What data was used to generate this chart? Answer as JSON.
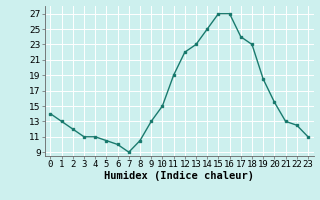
{
  "xlabel": "Humidex (Indice chaleur)",
  "ylabel": "",
  "x": [
    0,
    1,
    2,
    3,
    4,
    5,
    6,
    7,
    8,
    9,
    10,
    11,
    12,
    13,
    14,
    15,
    16,
    17,
    18,
    19,
    20,
    21,
    22,
    23
  ],
  "y": [
    14,
    13,
    12,
    11,
    11,
    10.5,
    10,
    9,
    10.5,
    13,
    15,
    19,
    22,
    23,
    25,
    27,
    27,
    24,
    23,
    18.5,
    15.5,
    13,
    12.5,
    11
  ],
  "line_color": "#1a7a6e",
  "marker": "s",
  "marker_size": 2,
  "background_color": "#cdf0ee",
  "grid_color": "#b0dbd8",
  "ylim": [
    8.5,
    28
  ],
  "xlim": [
    -0.5,
    23.5
  ],
  "yticks": [
    9,
    11,
    13,
    15,
    17,
    19,
    21,
    23,
    25,
    27
  ],
  "xtick_labels": [
    "0",
    "1",
    "2",
    "3",
    "4",
    "5",
    "6",
    "7",
    "8",
    "9",
    "10",
    "11",
    "12",
    "13",
    "14",
    "15",
    "16",
    "17",
    "18",
    "19",
    "20",
    "21",
    "22",
    "23"
  ],
  "xlabel_fontsize": 7.5,
  "tick_fontsize": 6.5
}
